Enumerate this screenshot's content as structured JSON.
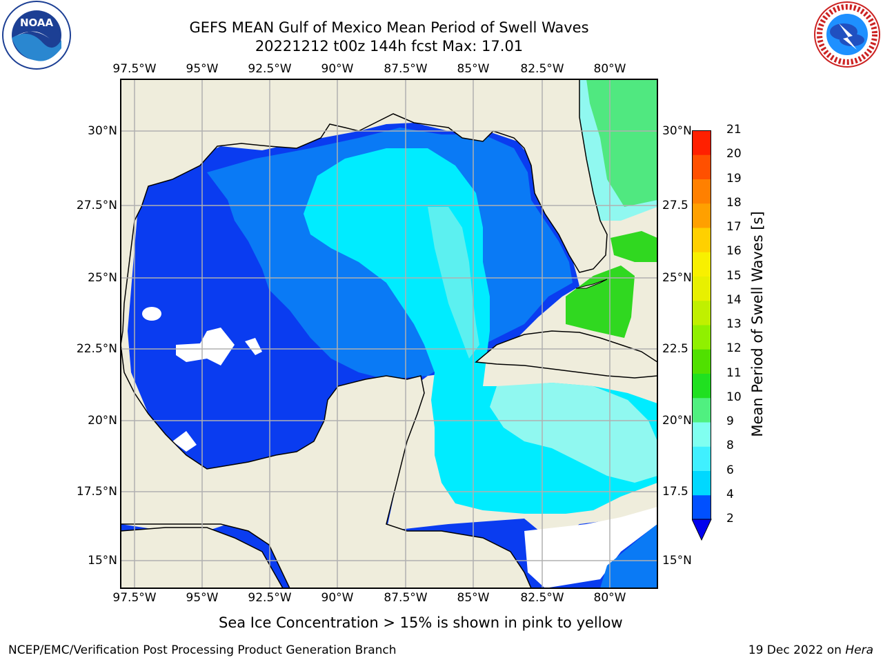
{
  "title": {
    "line1": "GEFS MEAN Gulf of Mexico Mean Period of Swell Waves",
    "line2": "20221212 t00z 144h fcst   Max: 17.01"
  },
  "logos": {
    "left": {
      "name": "noaa-logo",
      "text": "NOAA",
      "ring_text": "NATIONAL OCEANIC AND ATMOSPHERIC ADMINISTRATION · U.S. DEPARTMENT OF COMMERCE"
    },
    "right": {
      "name": "nws-logo",
      "ring_text": "NATIONAL WEATHER SERVICE"
    }
  },
  "map": {
    "lon_labels": [
      "97.5°W",
      "95°W",
      "92.5°W",
      "90°W",
      "87.5°W",
      "85°W",
      "82.5°W",
      "80°W"
    ],
    "lat_labels_left": [
      "30°N",
      "27.5°N",
      "25°N",
      "22.5°N",
      "20°N",
      "17.5°N",
      "15°N"
    ],
    "lat_labels_right": [
      "30°N",
      "27.5",
      "25°N",
      "22.5",
      "20°N",
      "17.5",
      "15°N"
    ],
    "land_color": "#efeddc",
    "grid_color": "#b0b0b0"
  },
  "colorbar": {
    "title": "Mean Period of Swell Waves [s]",
    "ticks": [
      "2",
      "4",
      "6",
      "8",
      "9",
      "10",
      "11",
      "12",
      "13",
      "14",
      "15",
      "16",
      "17",
      "18",
      "19",
      "20",
      "21"
    ],
    "colors": [
      "#0050ff",
      "#00d8ff",
      "#40f0ff",
      "#80fff0",
      "#50f080",
      "#20e020",
      "#50e000",
      "#90f000",
      "#c0f000",
      "#e8f000",
      "#f8f000",
      "#ffd000",
      "#ffa000",
      "#ff8000",
      "#ff5000",
      "#ff2000"
    ],
    "extend_color": "#0000ee"
  },
  "footnote": "Sea Ice Concentration > 15% is shown in pink to yellow",
  "footer": {
    "left": "NCEP/EMC/Verification Post Processing Product Generation Branch",
    "right_date": "19 Dec 2022 on ",
    "right_host": "Hera"
  }
}
